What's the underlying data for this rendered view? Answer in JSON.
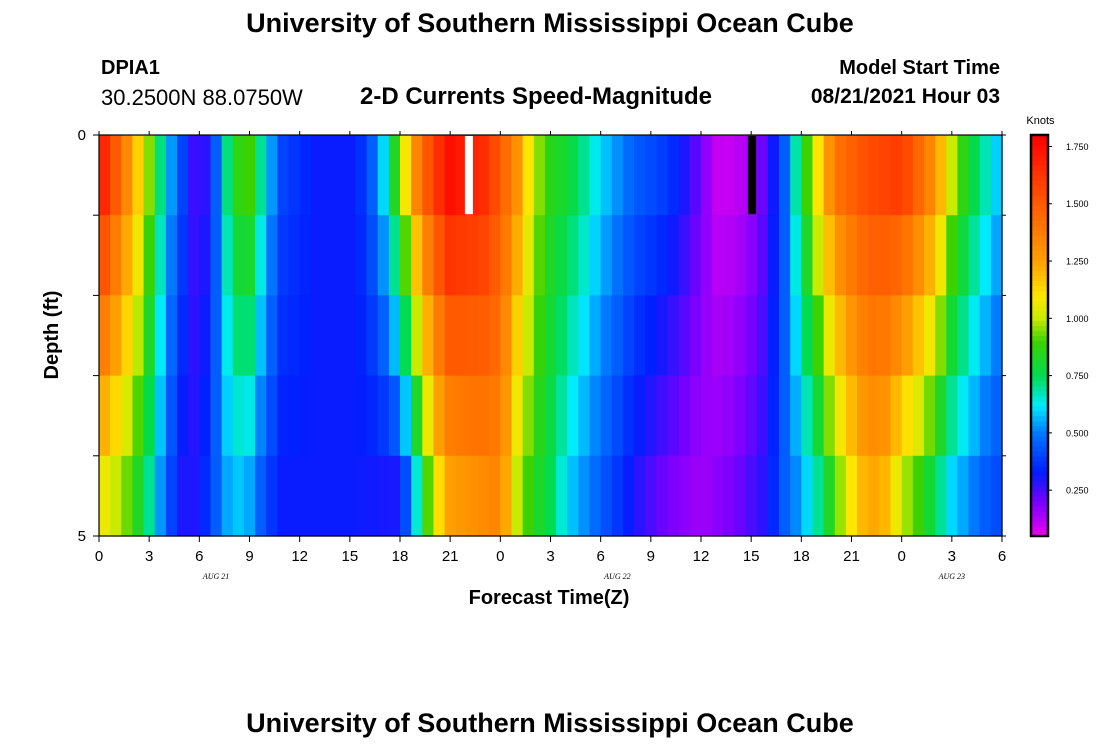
{
  "title": "University of Southern Mississippi Ocean Cube",
  "footer_title": "University of Southern Mississippi Ocean Cube",
  "station": {
    "id": "DPIA1",
    "coords": "30.2500N  88.0750W"
  },
  "model": {
    "label": "Model Start Time",
    "time": "08/21/2021 Hour 03"
  },
  "chart_data": {
    "type": "heatmap",
    "title": "2-D Currents Speed-Magnitude",
    "xlabel": "Forecast Time(Z)",
    "ylabel": "Depth (ft)",
    "y_tick_labels": [
      "0",
      "5"
    ],
    "ylim": [
      0,
      5
    ],
    "x_tick_labels": [
      "0",
      "3",
      "6",
      "9",
      "12",
      "15",
      "18",
      "21",
      "0",
      "3",
      "6",
      "9",
      "12",
      "15",
      "18",
      "21",
      "0",
      "3",
      "6"
    ],
    "date_labels": [
      "AUG 21",
      "AUG 22",
      "AUG 23"
    ],
    "colorbar": {
      "unit": "Knots",
      "tick_labels": [
        "1.750",
        "1.500",
        "1.250",
        "1.000",
        "0.750",
        "0.500",
        "0.250"
      ],
      "tick_values": [
        1.75,
        1.5,
        1.25,
        1.0,
        0.75,
        0.5,
        0.25
      ],
      "range": [
        0.05,
        1.8
      ]
    },
    "forecast_hours": [
      0,
      54
    ],
    "depth_layers": 5,
    "surface_nodes": [
      [
        0,
        1.75
      ],
      [
        2,
        1.25
      ],
      [
        3,
        0.95
      ],
      [
        4,
        0.6
      ],
      [
        5,
        0.4
      ],
      [
        6,
        0.2
      ],
      [
        7,
        0.45
      ],
      [
        8,
        0.85
      ],
      [
        9,
        0.9
      ],
      [
        10,
        0.6
      ],
      [
        11,
        0.4
      ],
      [
        13,
        0.32
      ],
      [
        15,
        0.32
      ],
      [
        16,
        0.38
      ],
      [
        17,
        0.6
      ],
      [
        18,
        0.95
      ],
      [
        19,
        1.35
      ],
      [
        20,
        1.6
      ],
      [
        21,
        1.75
      ],
      [
        23,
        1.65
      ],
      [
        24,
        1.5
      ],
      [
        25,
        1.3
      ],
      [
        26,
        1.0
      ],
      [
        27,
        0.85
      ],
      [
        28,
        0.8
      ],
      [
        30,
        0.6
      ],
      [
        32,
        0.45
      ],
      [
        34,
        0.38
      ],
      [
        35,
        0.3
      ],
      [
        36,
        0.2
      ],
      [
        37,
        0.1
      ],
      [
        38,
        0.1
      ],
      [
        39,
        0.15
      ],
      [
        40,
        0.25
      ],
      [
        41,
        0.45
      ],
      [
        42,
        0.8
      ],
      [
        43,
        1.1
      ],
      [
        44,
        1.4
      ],
      [
        46,
        1.55
      ],
      [
        48,
        1.6
      ],
      [
        50,
        1.3
      ],
      [
        51,
        1.0
      ],
      [
        52,
        0.8
      ],
      [
        54,
        0.55
      ]
    ],
    "bottom_nodes": [
      [
        0,
        1.1
      ],
      [
        1,
        1.0
      ],
      [
        2,
        0.9
      ],
      [
        3,
        0.7
      ],
      [
        4,
        0.45
      ],
      [
        5,
        0.3
      ],
      [
        6,
        0.3
      ],
      [
        7,
        0.45
      ],
      [
        8,
        0.6
      ],
      [
        9,
        0.55
      ],
      [
        10,
        0.4
      ],
      [
        11,
        0.32
      ],
      [
        15,
        0.32
      ],
      [
        18,
        0.3
      ],
      [
        19,
        0.65
      ],
      [
        20,
        1.05
      ],
      [
        21,
        1.25
      ],
      [
        22,
        1.3
      ],
      [
        24,
        1.35
      ],
      [
        25,
        1.0
      ],
      [
        26,
        0.85
      ],
      [
        27,
        0.75
      ],
      [
        28,
        0.6
      ],
      [
        30,
        0.45
      ],
      [
        32,
        0.3
      ],
      [
        34,
        0.2
      ],
      [
        36,
        0.15
      ],
      [
        38,
        0.2
      ],
      [
        40,
        0.3
      ],
      [
        41,
        0.45
      ],
      [
        42,
        0.55
      ],
      [
        43,
        0.7
      ],
      [
        44,
        0.9
      ],
      [
        45,
        1.1
      ],
      [
        46,
        1.25
      ],
      [
        47,
        1.2
      ],
      [
        48,
        1.0
      ],
      [
        49,
        0.9
      ],
      [
        50,
        0.75
      ],
      [
        51,
        0.6
      ],
      [
        53,
        0.45
      ],
      [
        54,
        0.4
      ]
    ]
  }
}
